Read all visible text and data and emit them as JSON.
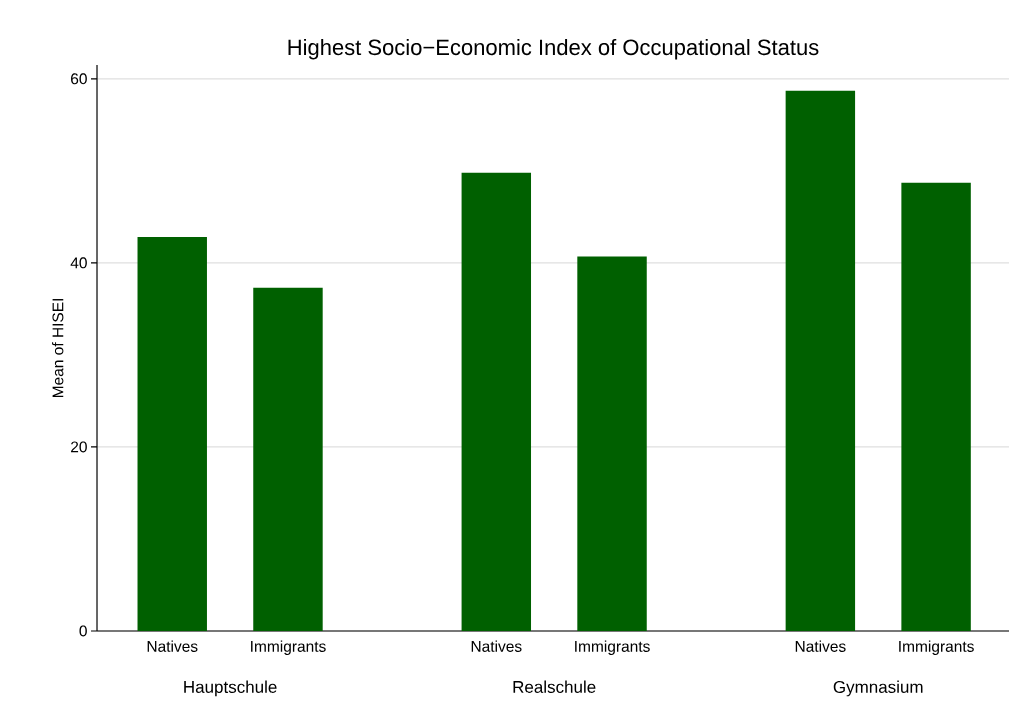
{
  "chart_data": {
    "type": "bar",
    "title": "Highest Socio−Economic Index of Occupational Status",
    "ylabel": "Mean of HISEI",
    "categories": [
      "Natives",
      "Immigrants",
      "Natives",
      "Immigrants",
      "Natives",
      "Immigrants"
    ],
    "values": [
      42.8,
      37.3,
      49.8,
      40.7,
      58.7,
      48.7
    ],
    "color": "#006000",
    "annotations": [
      "Hauptschule",
      "Realschule",
      "Gymnasium"
    ],
    "ylim": [
      0,
      61.5
    ],
    "yticks": [
      0,
      20,
      40,
      60
    ],
    "grid": "y"
  }
}
